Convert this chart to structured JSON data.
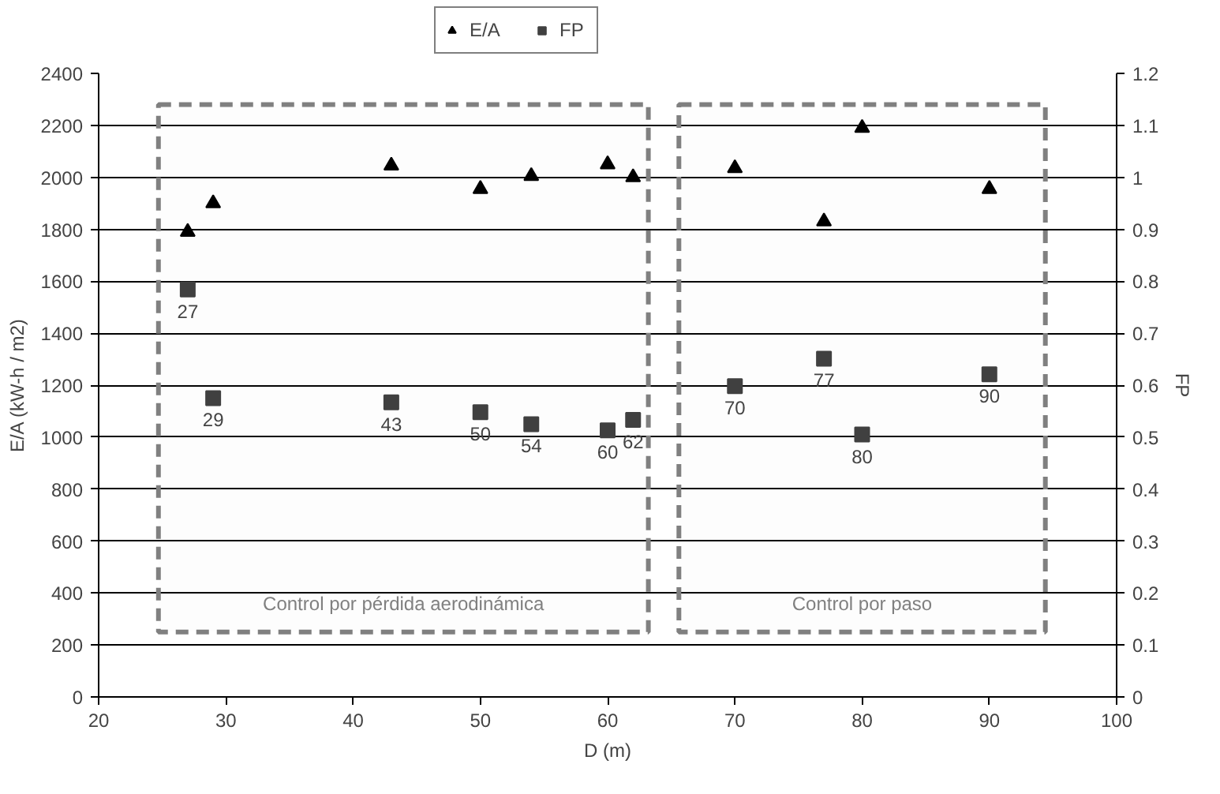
{
  "chart_data": {
    "type": "scatter",
    "xlabel": "D (m)",
    "ylabel": "E/A (kW-h / m2)",
    "y2label": "FP",
    "xlim": [
      20,
      100
    ],
    "xticks": [
      20,
      30,
      40,
      50,
      60,
      70,
      80,
      90,
      100
    ],
    "ylim": [
      0,
      2400
    ],
    "yticks": [
      0,
      200,
      400,
      600,
      800,
      1000,
      1200,
      1400,
      1600,
      1800,
      2000,
      2200,
      2400
    ],
    "y2lim": [
      0,
      1.2
    ],
    "y2ticks": [
      0,
      0.1,
      0.2,
      0.3,
      0.4,
      0.5,
      0.6,
      0.7,
      0.8,
      0.9,
      1,
      1.1,
      1.2
    ],
    "grid": "y",
    "legend": "top",
    "x": [
      27,
      29,
      43,
      50,
      54,
      60,
      62,
      70,
      77,
      80,
      90
    ],
    "series": [
      {
        "name": "E/A",
        "color": "#000000",
        "marker": "triangle",
        "values": [
          1790,
          1900,
          2045,
          1955,
          2005,
          2050,
          2000,
          2035,
          1830,
          2190,
          1955
        ]
      },
      {
        "name": "FP",
        "color": "#404040",
        "marker": "square",
        "axis": "y2",
        "values": [
          0.784,
          0.575,
          0.567,
          0.548,
          0.525,
          0.513,
          0.533,
          0.598,
          0.651,
          0.505,
          0.621
        ]
      }
    ],
    "bands": [
      {
        "axis": "x",
        "from": 24.7,
        "to": 63.2,
        "label": "Control por pérdida aerodinámica",
        "color": "#808080"
      },
      {
        "axis": "x",
        "from": 65.6,
        "to": 94.4,
        "label": "Control por paso",
        "color": "#808080"
      }
    ],
    "annotations": [
      {
        "text": "27",
        "x": 27,
        "y": 1568
      },
      {
        "text": "29",
        "x": 29,
        "y": 1150
      },
      {
        "text": "43",
        "x": 43,
        "y": 1134
      },
      {
        "text": "50",
        "x": 50,
        "y": 1096
      },
      {
        "text": "54",
        "x": 54,
        "y": 1050
      },
      {
        "text": "60",
        "x": 60,
        "y": 1026
      },
      {
        "text": "62",
        "x": 62,
        "y": 1066
      },
      {
        "text": "70",
        "x": 70,
        "y": 1196
      },
      {
        "text": "77",
        "x": 77,
        "y": 1302
      },
      {
        "text": "80",
        "x": 80,
        "y": 1010
      },
      {
        "text": "90",
        "x": 90,
        "y": 1242
      }
    ]
  }
}
